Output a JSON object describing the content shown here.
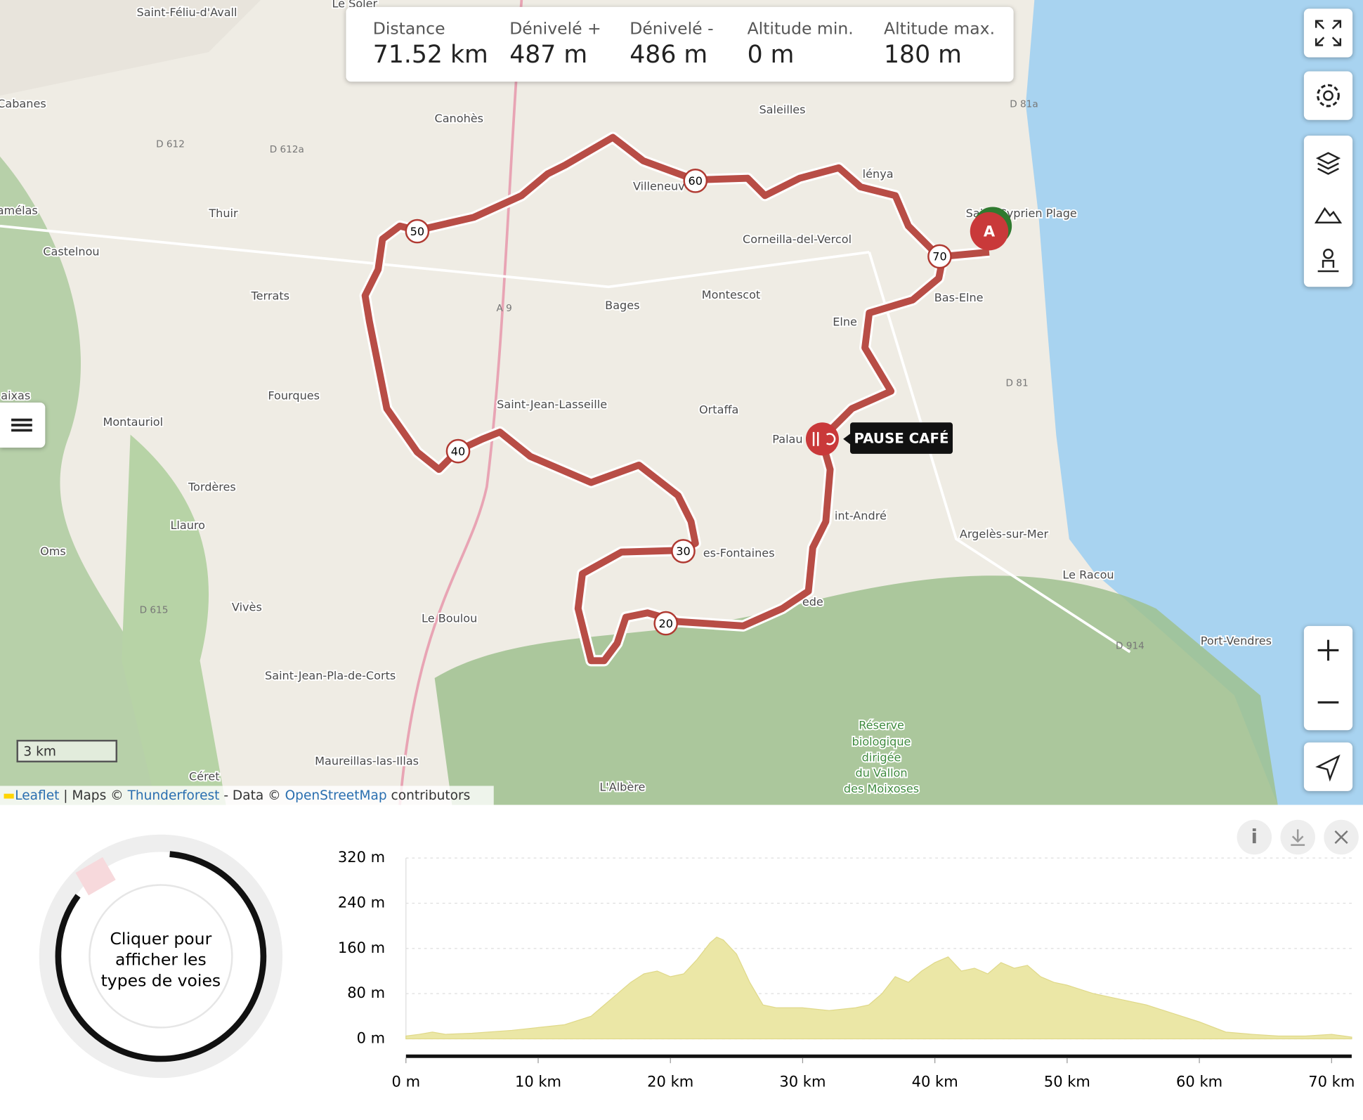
{
  "stats": [
    {
      "label": "Distance",
      "value": "71.52 km"
    },
    {
      "label": "Dénivelé +",
      "value": "487 m"
    },
    {
      "label": "Dénivelé -",
      "value": "486 m"
    },
    {
      "label": "Altitude min.",
      "value": "0 m"
    },
    {
      "label": "Altitude max.",
      "value": "180 m"
    }
  ],
  "map": {
    "labels": [
      "Saint-Féliu-d'Avall",
      "Le Soler",
      "Cabanes",
      "D 612",
      "D 612a",
      "Canohès",
      "Saleilles",
      "amélas",
      "Thuir",
      "Castelnou",
      "Villeneuv",
      "Corneilla-del-Vercol",
      "Saint-Cyprien Plage",
      "Terrats",
      "A 9",
      "Bages",
      "Montescot",
      "Elne",
      "Bas-Elne",
      "Fourques",
      "aixas",
      "Montauriol",
      "Saint-Jean-Lasseille",
      "Ortaffa",
      "Palau",
      "D 81",
      "Tordères",
      "Llauro",
      "Oms",
      "int-André",
      "es-Fontaines",
      "Argelès-sur-Mer",
      "Le Racou",
      "Vivès",
      "Le Boulou",
      "D 615",
      "ede",
      "Saint-Jean-Pla-de-Corts",
      "Port-Vendres",
      "D 914",
      "Maureillas-las-Illas",
      "Céret",
      "L'Albère",
      "Réserve",
      "biologique",
      "dirigée",
      "du Vallon",
      "des Moixoses",
      "D 81a",
      "lénya"
    ],
    "route_markers": [
      "20",
      "30",
      "40",
      "50",
      "60",
      "70"
    ],
    "start": "A",
    "poi": "PAUSE CAFÉ",
    "scale": "3 km",
    "attribution": {
      "leaflet": "Leaflet",
      "maps": "| Maps ©",
      "thunderforest": "Thunderforest",
      "data": "- Data ©",
      "osm": "OpenStreetMap",
      "contributors": "contributors"
    }
  },
  "donut": {
    "text": [
      "Cliquer pour",
      "afficher les",
      "types de voies"
    ]
  },
  "chart_data": {
    "type": "area",
    "color": "#ebe7a6",
    "x": [
      0,
      1,
      2,
      3,
      5,
      8,
      10,
      12,
      14,
      15,
      16,
      17,
      18,
      19,
      20,
      21,
      22,
      23,
      23.5,
      24,
      25,
      26,
      27,
      28,
      30,
      32,
      34,
      35,
      36,
      37,
      38,
      39,
      40,
      41,
      42,
      43,
      44,
      45,
      46,
      47,
      48,
      49,
      50,
      52,
      54,
      56,
      58,
      60,
      62,
      64,
      66,
      68,
      70,
      71.52
    ],
    "values": [
      5,
      8,
      12,
      8,
      10,
      15,
      20,
      25,
      40,
      60,
      80,
      100,
      115,
      120,
      110,
      115,
      140,
      170,
      180,
      175,
      150,
      100,
      60,
      55,
      55,
      50,
      55,
      60,
      80,
      110,
      100,
      120,
      135,
      145,
      120,
      125,
      115,
      135,
      125,
      130,
      110,
      100,
      95,
      80,
      70,
      60,
      45,
      30,
      12,
      8,
      5,
      5,
      8,
      3
    ],
    "xlim": [
      0,
      71.52
    ],
    "ylim": [
      0,
      320
    ],
    "xticks": [
      {
        "value": 0,
        "label": "0 m"
      },
      {
        "value": 10,
        "label": "10 km"
      },
      {
        "value": 20,
        "label": "20 km"
      },
      {
        "value": 30,
        "label": "30 km"
      },
      {
        "value": 40,
        "label": "40 km"
      },
      {
        "value": 50,
        "label": "50 km"
      },
      {
        "value": 60,
        "label": "60 km"
      },
      {
        "value": 70,
        "label": "70 km"
      }
    ],
    "yticks": [
      {
        "value": 0,
        "label": "0 m"
      },
      {
        "value": 80,
        "label": "80 m"
      },
      {
        "value": 160,
        "label": "160 m"
      },
      {
        "value": 240,
        "label": "240 m"
      },
      {
        "value": 320,
        "label": "320 m"
      }
    ],
    "grid": true
  }
}
